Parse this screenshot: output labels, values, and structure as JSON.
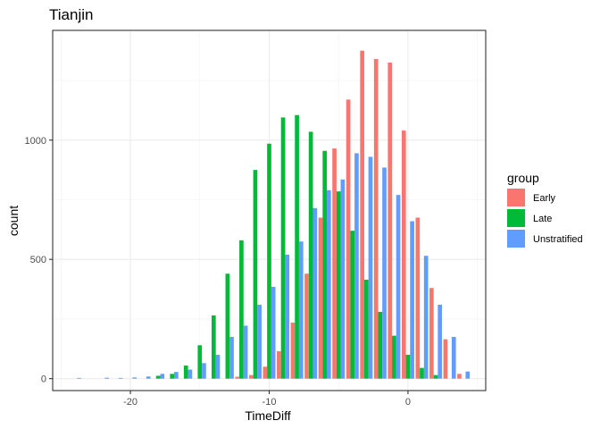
{
  "chart_data": {
    "type": "bar",
    "title": "Tianjin",
    "xlabel": "TimeDiff",
    "ylabel": "count",
    "xlim": [
      -25.6,
      5.6
    ],
    "ylim": [
      -50,
      1460
    ],
    "x_ticks": [
      -20,
      -10,
      0
    ],
    "y_ticks": [
      0,
      500,
      1000
    ],
    "x_tick_labels": [
      "-20",
      "-10",
      "0"
    ],
    "y_tick_labels": [
      "0",
      "500",
      "1000"
    ],
    "grid": true,
    "legend": {
      "title": "group",
      "position": "right"
    },
    "x": [
      -24,
      -23,
      -22,
      -21,
      -20,
      -19,
      -18,
      -17,
      -16,
      -15,
      -14,
      -13,
      -12,
      -11,
      -10,
      -9,
      -8,
      -7,
      -6,
      -5,
      -4,
      -3,
      -2,
      -1,
      0,
      1,
      2,
      3,
      4,
      5
    ],
    "series": [
      {
        "name": "Early",
        "color": "#F8766D",
        "values": [
          0,
          0,
          0,
          0,
          0,
          0,
          0,
          0,
          0,
          0,
          0,
          0,
          8,
          15,
          50,
          115,
          235,
          440,
          675,
          965,
          1170,
          1375,
          1340,
          1325,
          1040,
          675,
          380,
          165,
          20,
          0
        ]
      },
      {
        "name": "Late",
        "color": "#00BA38",
        "values": [
          0,
          0,
          0,
          0,
          0,
          0,
          12,
          20,
          55,
          140,
          265,
          440,
          580,
          875,
          985,
          1095,
          1105,
          1035,
          955,
          785,
          620,
          415,
          280,
          180,
          100,
          45,
          15,
          0,
          0,
          0
        ]
      },
      {
        "name": "Unstratified",
        "color": "#619CFF",
        "values": [
          3,
          0,
          4,
          3,
          5,
          9,
          20,
          28,
          38,
          65,
          100,
          175,
          222,
          310,
          385,
          520,
          575,
          715,
          790,
          835,
          945,
          930,
          885,
          770,
          660,
          515,
          310,
          175,
          30,
          0
        ]
      }
    ]
  }
}
